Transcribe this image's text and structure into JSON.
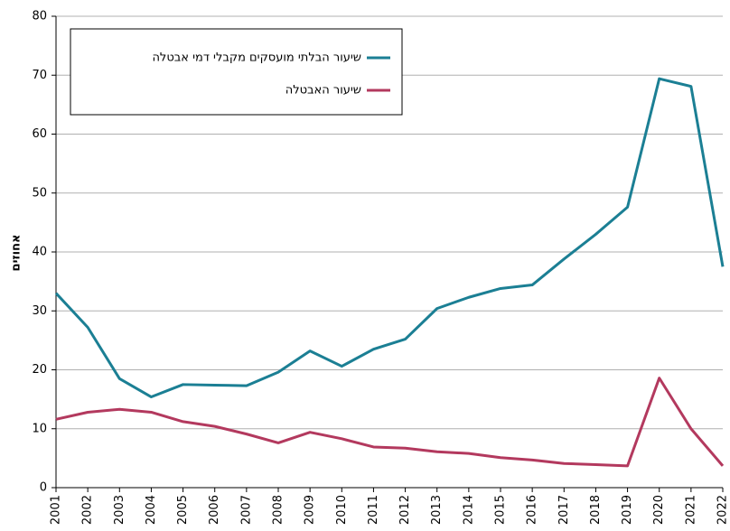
{
  "chart_data": {
    "type": "line",
    "ylabel": "אחוזים",
    "x": [
      2001,
      2002,
      2003,
      2004,
      2005,
      2006,
      2007,
      2008,
      2009,
      2010,
      2011,
      2012,
      2013,
      2014,
      2015,
      2016,
      2017,
      2018,
      2019,
      2020,
      2021,
      2022
    ],
    "xlim": [
      2001,
      2022
    ],
    "xticks": [
      2001,
      2002,
      2003,
      2004,
      2005,
      2006,
      2007,
      2008,
      2009,
      2010,
      2011,
      2012,
      2013,
      2014,
      2015,
      2016,
      2017,
      2018,
      2019,
      2020,
      2021,
      2022
    ],
    "ylim": [
      0,
      80
    ],
    "yticks": [
      0,
      10,
      20,
      30,
      40,
      50,
      60,
      70,
      80
    ],
    "grid": true,
    "legend": "upper left",
    "series": [
      {
        "name": "שיעור הבלתי מועסקים מקבלי דמי אבטלה",
        "color": "#1b7f94",
        "values": [
          33,
          27.2,
          18.5,
          15.4,
          17.5,
          17.4,
          17.3,
          19.6,
          23.2,
          20.6,
          23.5,
          25.2,
          30.4,
          32.3,
          33.8,
          34.4,
          38.8,
          43,
          47.6,
          69.4,
          68.1,
          37.5
        ]
      },
      {
        "name": "שיעור האבטלה",
        "color": "#b3395e",
        "values": [
          11.6,
          12.8,
          13.3,
          12.8,
          11.2,
          10.4,
          9.1,
          7.6,
          9.4,
          8.3,
          6.9,
          6.7,
          6.1,
          5.8,
          5.1,
          4.7,
          4.1,
          3.9,
          3.7,
          18.6,
          10,
          3.7
        ]
      }
    ]
  }
}
